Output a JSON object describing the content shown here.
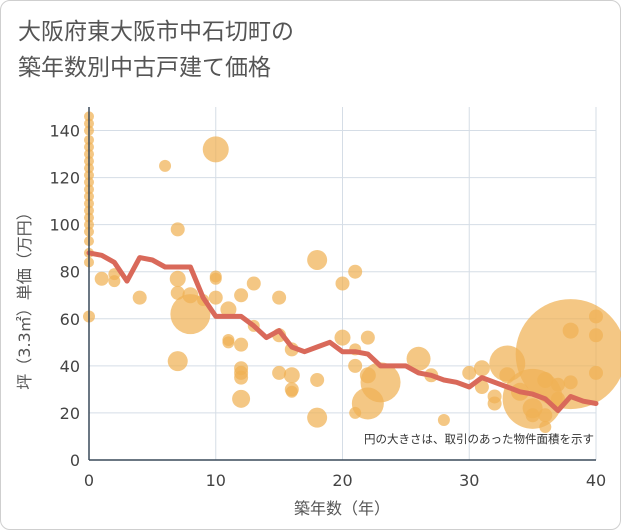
{
  "chart_data": {
    "type": "scatter",
    "title_line1": "大阪府東大阪市中石切町の",
    "title_line2": "築年数別中古戸建て価格",
    "xlabel": "築年数（年）",
    "ylabel": "坪（3.3㎡）単価（万円）",
    "note": "円の大きさは、取引のあった物件面積を示す",
    "xlim": [
      0,
      40
    ],
    "ylim": [
      0,
      150
    ],
    "x_ticks": [
      "0",
      "10",
      "20",
      "30",
      "40"
    ],
    "y_ticks": [
      "0",
      "20",
      "40",
      "60",
      "80",
      "100",
      "120",
      "140"
    ],
    "colors": {
      "bubble": "#f0b155",
      "line": "#d9695a",
      "grid": "#d5dde6"
    },
    "bubbles": [
      {
        "x": 0,
        "y": 146,
        "s": 5
      },
      {
        "x": 0,
        "y": 143,
        "s": 5
      },
      {
        "x": 0,
        "y": 140,
        "s": 5
      },
      {
        "x": 0,
        "y": 136,
        "s": 5
      },
      {
        "x": 0,
        "y": 133,
        "s": 5
      },
      {
        "x": 0,
        "y": 130,
        "s": 5
      },
      {
        "x": 0,
        "y": 127,
        "s": 5
      },
      {
        "x": 0,
        "y": 124,
        "s": 5
      },
      {
        "x": 0,
        "y": 121,
        "s": 5
      },
      {
        "x": 0,
        "y": 118,
        "s": 5
      },
      {
        "x": 0,
        "y": 115,
        "s": 5
      },
      {
        "x": 0,
        "y": 112,
        "s": 5
      },
      {
        "x": 0,
        "y": 109,
        "s": 5
      },
      {
        "x": 0,
        "y": 106,
        "s": 5
      },
      {
        "x": 0,
        "y": 103,
        "s": 5
      },
      {
        "x": 0,
        "y": 100,
        "s": 5
      },
      {
        "x": 0,
        "y": 97,
        "s": 5
      },
      {
        "x": 0,
        "y": 93,
        "s": 5
      },
      {
        "x": 0,
        "y": 88,
        "s": 5
      },
      {
        "x": 0,
        "y": 84,
        "s": 5
      },
      {
        "x": 0,
        "y": 61,
        "s": 6
      },
      {
        "x": 1,
        "y": 77,
        "s": 7
      },
      {
        "x": 2,
        "y": 79,
        "s": 6
      },
      {
        "x": 2,
        "y": 76,
        "s": 6
      },
      {
        "x": 4,
        "y": 69,
        "s": 7
      },
      {
        "x": 6,
        "y": 125,
        "s": 6
      },
      {
        "x": 7,
        "y": 98,
        "s": 7
      },
      {
        "x": 7,
        "y": 77,
        "s": 8
      },
      {
        "x": 7,
        "y": 71,
        "s": 7
      },
      {
        "x": 7,
        "y": 42,
        "s": 10
      },
      {
        "x": 8,
        "y": 62,
        "s": 20
      },
      {
        "x": 8,
        "y": 70,
        "s": 8
      },
      {
        "x": 9,
        "y": 68,
        "s": 6
      },
      {
        "x": 10,
        "y": 132,
        "s": 13
      },
      {
        "x": 10,
        "y": 78,
        "s": 6
      },
      {
        "x": 10,
        "y": 77,
        "s": 6
      },
      {
        "x": 10,
        "y": 69,
        "s": 7
      },
      {
        "x": 11,
        "y": 64,
        "s": 8
      },
      {
        "x": 11,
        "y": 51,
        "s": 6
      },
      {
        "x": 11,
        "y": 50,
        "s": 6
      },
      {
        "x": 12,
        "y": 70,
        "s": 7
      },
      {
        "x": 12,
        "y": 49,
        "s": 7
      },
      {
        "x": 12,
        "y": 39,
        "s": 7
      },
      {
        "x": 12,
        "y": 37,
        "s": 7
      },
      {
        "x": 12,
        "y": 35,
        "s": 7
      },
      {
        "x": 12,
        "y": 26,
        "s": 9
      },
      {
        "x": 13,
        "y": 75,
        "s": 7
      },
      {
        "x": 13,
        "y": 57,
        "s": 6
      },
      {
        "x": 15,
        "y": 69,
        "s": 7
      },
      {
        "x": 15,
        "y": 53,
        "s": 7
      },
      {
        "x": 15,
        "y": 37,
        "s": 7
      },
      {
        "x": 16,
        "y": 47,
        "s": 7
      },
      {
        "x": 16,
        "y": 36,
        "s": 8
      },
      {
        "x": 16,
        "y": 30,
        "s": 7
      },
      {
        "x": 16,
        "y": 29,
        "s": 6
      },
      {
        "x": 18,
        "y": 85,
        "s": 10
      },
      {
        "x": 18,
        "y": 34,
        "s": 7
      },
      {
        "x": 18,
        "y": 18,
        "s": 10
      },
      {
        "x": 20,
        "y": 75,
        "s": 7
      },
      {
        "x": 20,
        "y": 52,
        "s": 8
      },
      {
        "x": 21,
        "y": 80,
        "s": 7
      },
      {
        "x": 21,
        "y": 47,
        "s": 6
      },
      {
        "x": 21,
        "y": 40,
        "s": 7
      },
      {
        "x": 21,
        "y": 20,
        "s": 6
      },
      {
        "x": 22,
        "y": 52,
        "s": 7
      },
      {
        "x": 22,
        "y": 36,
        "s": 8
      },
      {
        "x": 22,
        "y": 24,
        "s": 16
      },
      {
        "x": 23,
        "y": 33,
        "s": 20
      },
      {
        "x": 26,
        "y": 43,
        "s": 12
      },
      {
        "x": 27,
        "y": 36,
        "s": 7
      },
      {
        "x": 28,
        "y": 17,
        "s": 6
      },
      {
        "x": 30,
        "y": 37,
        "s": 7
      },
      {
        "x": 31,
        "y": 39,
        "s": 8
      },
      {
        "x": 31,
        "y": 31,
        "s": 7
      },
      {
        "x": 32,
        "y": 27,
        "s": 7
      },
      {
        "x": 32,
        "y": 24,
        "s": 7
      },
      {
        "x": 33,
        "y": 36,
        "s": 8
      },
      {
        "x": 33,
        "y": 41,
        "s": 18
      },
      {
        "x": 34,
        "y": 29,
        "s": 9
      },
      {
        "x": 35,
        "y": 26,
        "s": 30
      },
      {
        "x": 35,
        "y": 22,
        "s": 10
      },
      {
        "x": 35,
        "y": 19,
        "s": 7
      },
      {
        "x": 36,
        "y": 34,
        "s": 8
      },
      {
        "x": 36,
        "y": 19,
        "s": 7
      },
      {
        "x": 36,
        "y": 14,
        "s": 6
      },
      {
        "x": 37,
        "y": 32,
        "s": 7
      },
      {
        "x": 37,
        "y": 26,
        "s": 7
      },
      {
        "x": 38,
        "y": 45,
        "s": 55
      },
      {
        "x": 38,
        "y": 55,
        "s": 8
      },
      {
        "x": 38,
        "y": 33,
        "s": 7
      },
      {
        "x": 40,
        "y": 61,
        "s": 7
      },
      {
        "x": 40,
        "y": 53,
        "s": 7
      },
      {
        "x": 40,
        "y": 37,
        "s": 7
      }
    ],
    "trend_line": {
      "x": [
        0,
        1,
        2,
        3,
        4,
        5,
        6,
        7,
        8,
        9,
        10,
        11,
        12,
        13,
        14,
        15,
        16,
        17,
        18,
        19,
        20,
        21,
        22,
        23,
        24,
        25,
        26,
        27,
        28,
        29,
        30,
        31,
        32,
        33,
        34,
        35,
        36,
        37,
        38,
        39,
        40
      ],
      "y": [
        88,
        87,
        84,
        76,
        86,
        85,
        82,
        82,
        82,
        69,
        61,
        61,
        61,
        57,
        52,
        55,
        48,
        46,
        48,
        50,
        46,
        46,
        45,
        40,
        40,
        40,
        37,
        36,
        34,
        33,
        31,
        35,
        33,
        31,
        29,
        28,
        26,
        21,
        27,
        25,
        24
      ]
    }
  }
}
